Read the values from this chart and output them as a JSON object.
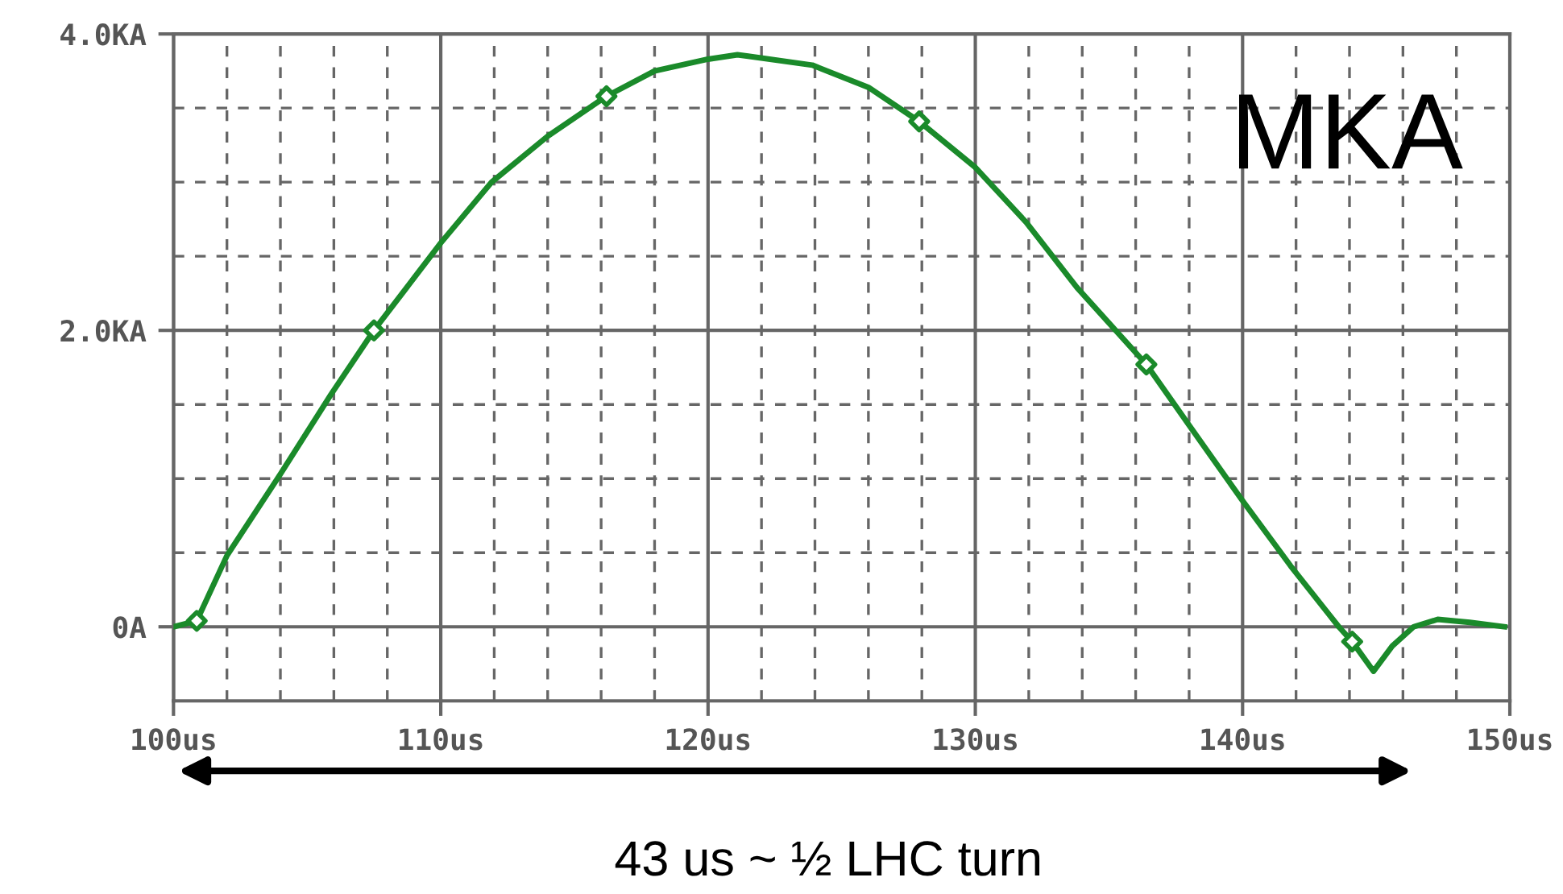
{
  "chart_data": {
    "type": "line",
    "annotations": [
      "MKA",
      "43 us ~ ½ LHC turn"
    ],
    "series": [
      {
        "color": "#1a8a2a",
        "marker": "none",
        "x": [
          100,
          100.87,
          102.0,
          104.0,
          105.9,
          107.5,
          110.0,
          111.9,
          114.0,
          116.2,
          118.0,
          120.0,
          121.1,
          121.5,
          123.9,
          126.0,
          127.9,
          130.0,
          131.9,
          133.8,
          136.4,
          138.0,
          140.0,
          141.8,
          143.6,
          144.1,
          144.9,
          145.6,
          146.4,
          147.3,
          148.5,
          149.8
        ],
        "values": [
          0.0,
          0.04,
          0.48,
          1.03,
          1.57,
          2.0,
          2.59,
          3.0,
          3.31,
          3.58,
          3.75,
          3.83,
          3.86,
          3.85,
          3.79,
          3.64,
          3.41,
          3.1,
          2.73,
          2.29,
          1.77,
          1.36,
          0.85,
          0.41,
          0.0,
          -0.1,
          -0.3,
          -0.13,
          0.0,
          0.05,
          0.03,
          0.0
        ]
      },
      {
        "type": "scatter",
        "color": "#1a8a2a",
        "marker": "diamond",
        "x": [
          100.87,
          107.5,
          116.2,
          127.9,
          136.4,
          144.1
        ],
        "values": [
          0.04,
          2.0,
          3.58,
          3.41,
          1.77,
          -0.1
        ]
      }
    ],
    "xlim": [
      100,
      150
    ],
    "xticks": [
      {
        "value": 100,
        "label": "100us"
      },
      {
        "value": 102,
        "label": null
      },
      {
        "value": 104,
        "label": null
      },
      {
        "value": 106,
        "label": null
      },
      {
        "value": 108,
        "label": null
      },
      {
        "value": 110,
        "label": "110us"
      },
      {
        "value": 112,
        "label": null
      },
      {
        "value": 114,
        "label": null
      },
      {
        "value": 116,
        "label": null
      },
      {
        "value": 118,
        "label": null
      },
      {
        "value": 120,
        "label": "120us"
      },
      {
        "value": 122,
        "label": null
      },
      {
        "value": 124,
        "label": null
      },
      {
        "value": 126,
        "label": null
      },
      {
        "value": 128,
        "label": null
      },
      {
        "value": 130,
        "label": "130us"
      },
      {
        "value": 132,
        "label": null
      },
      {
        "value": 134,
        "label": null
      },
      {
        "value": 136,
        "label": null
      },
      {
        "value": 138,
        "label": null
      },
      {
        "value": 140,
        "label": "140us"
      },
      {
        "value": 142,
        "label": null
      },
      {
        "value": 144,
        "label": null
      },
      {
        "value": 146,
        "label": null
      },
      {
        "value": 148,
        "label": null
      },
      {
        "value": 150,
        "label": "150us"
      }
    ],
    "ylim": [
      -0.5,
      4.0
    ],
    "yticks": [
      {
        "value": 0,
        "label": "0A"
      },
      {
        "value": 0.5,
        "label": null
      },
      {
        "value": 1.0,
        "label": null
      },
      {
        "value": 1.5,
        "label": null
      },
      {
        "value": 2.0,
        "label": "2.0KA"
      },
      {
        "value": 2.5,
        "label": null
      },
      {
        "value": 3.0,
        "label": null
      },
      {
        "value": 3.5,
        "label": null
      },
      {
        "value": 4.0,
        "label": "4.0KA"
      }
    ],
    "grid": true
  }
}
